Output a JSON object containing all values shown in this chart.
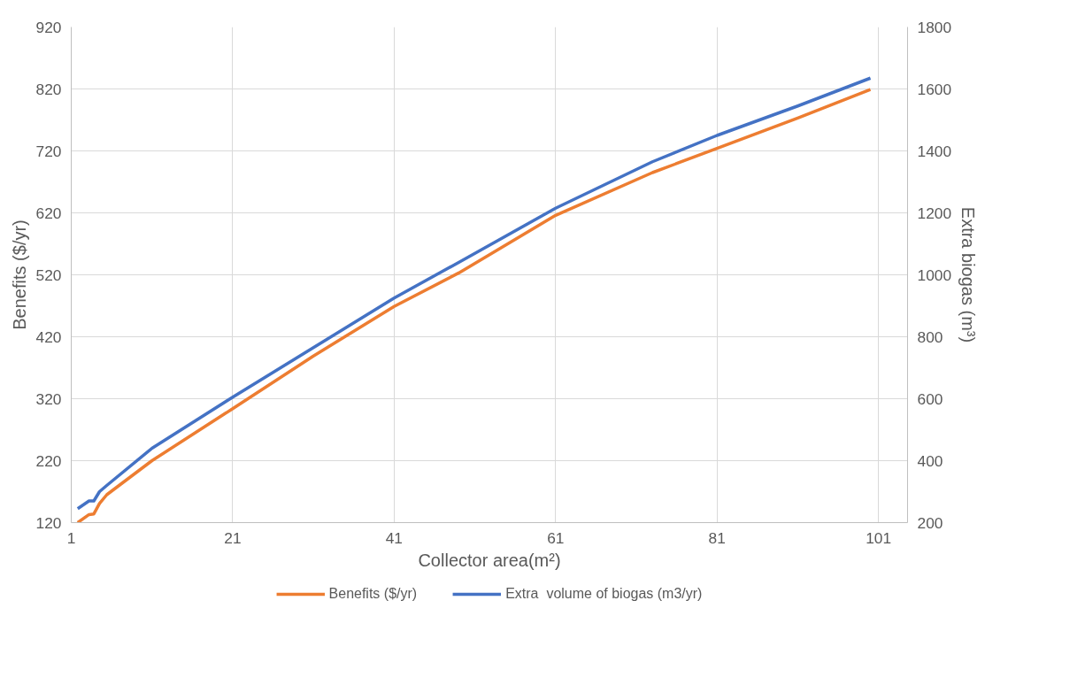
{
  "chart_data": {
    "type": "line",
    "xlabel": "Collector area(m²)",
    "ylabel": "Benefits ($/yr)",
    "y2label": "Extra biogas (m³)",
    "x": [
      1.8,
      3.2,
      3.8,
      4.5,
      5.4,
      11,
      21,
      31,
      41,
      49,
      61,
      73,
      81,
      91,
      100
    ],
    "series": [
      {
        "name": "Benefits ($/yr)",
        "color": "#ed7d31",
        "values": [
          120,
          133,
          134,
          151,
          165,
          220,
          304,
          389,
          469,
          523,
          616,
          685,
          724,
          773,
          819
        ]
      },
      {
        "name": "Extra  volume of biogas (m3/yr)",
        "color": "#4472c4",
        "axis": "y2",
        "values": [
          245,
          270,
          270,
          300,
          320,
          440,
          605,
          765,
          925,
          1040,
          1215,
          1365,
          1450,
          1545,
          1635
        ]
      }
    ],
    "xlim": [
      1,
      104.6
    ],
    "xticks": [
      1,
      21,
      41,
      61,
      81,
      101
    ],
    "ylim": [
      120,
      920
    ],
    "yticks": [
      120,
      220,
      320,
      420,
      520,
      620,
      720,
      820,
      920
    ],
    "y2lim": [
      200,
      1800
    ],
    "y2ticks": [
      200,
      400,
      600,
      800,
      1000,
      1200,
      1400,
      1600,
      1800
    ],
    "grid": true,
    "legend": "bottom",
    "marker": "none",
    "line_style": "solid"
  }
}
